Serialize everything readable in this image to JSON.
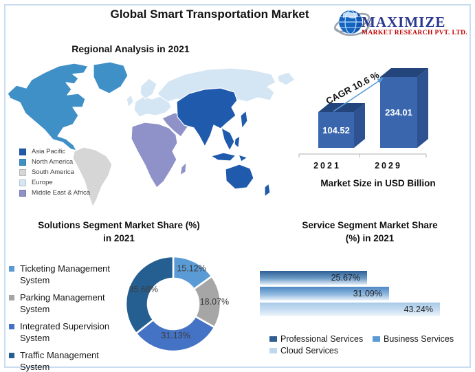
{
  "page": {
    "title": "Global Smart Transportation Market",
    "border_color": "#C9DCF0"
  },
  "logo": {
    "brand": "MAXIMIZE",
    "subtitle": "MARKET RESEARCH PVT. LTD.",
    "brand_color": "#2B3990",
    "subtitle_color": "#C00000"
  },
  "regional": {
    "heading": "Regional Analysis in 2021",
    "legend": [
      {
        "label": "Asia Pacific",
        "color": "#1F5AAD"
      },
      {
        "label": "North America",
        "color": "#4090C8"
      },
      {
        "label": "South America",
        "color": "#D6D6D6"
      },
      {
        "label": "Europe",
        "color": "#D4E5F3"
      },
      {
        "label": "Middle East & Africa",
        "color": "#8F91C9"
      }
    ]
  },
  "chart_data": [
    {
      "id": "market_size",
      "type": "bar",
      "style": "3d",
      "title": "Market Size in USD Billion",
      "categories": [
        "2021",
        "2029"
      ],
      "values": [
        104.52,
        234.01
      ],
      "value_labels": [
        "104.52",
        "234.01"
      ],
      "annotation": "CAGR 10.6 %",
      "bar_front_color": "#3A66AE",
      "bar_top_color": "#24457C",
      "bar_side_color": "#2D5191",
      "arrow_color": "#5B9BD5"
    },
    {
      "id": "solutions_segment",
      "type": "pie",
      "subtype": "donut",
      "title": "Solutions Segment Market Share (%) in 2021",
      "title_lines": [
        "Solutions Segment Market Share (%)",
        "in 2021"
      ],
      "labels": [
        "Ticketing Management System",
        "Parking Management System",
        "Integrated Supervision System",
        "Traffic Management System"
      ],
      "label_lines": [
        [
          "Ticketing Management",
          "System"
        ],
        [
          "Parking Management",
          "System"
        ],
        [
          "Integrated Supervision",
          "System"
        ],
        [
          "Traffic Management System"
        ]
      ],
      "values": [
        15.12,
        18.07,
        31.13,
        35.68
      ],
      "value_labels": [
        "15.12%",
        "18.07%",
        "31.13%",
        "35.68%"
      ],
      "colors": [
        "#5B9BD5",
        "#A6A6A6",
        "#4472C4",
        "#255E91"
      ],
      "legend_position": "left"
    },
    {
      "id": "service_segment",
      "type": "bar",
      "orientation": "horizontal",
      "title": "Service Segment Market Share (%) in 2021",
      "title_lines": [
        "Service Segment Market Share",
        "(%) in 2021"
      ],
      "categories": [
        "Professional Services",
        "Business Services",
        "Cloud Services"
      ],
      "values": [
        25.67,
        31.09,
        43.24
      ],
      "value_labels": [
        "25.67%",
        "31.09%",
        "43.24%"
      ],
      "colors": [
        "#2F5E93",
        "#5B9BD5",
        "#BDD7EE"
      ],
      "gradients": [
        [
          "#2E5E94",
          "#6F9CC8",
          "#E2ECF6"
        ],
        [
          "#4E88C4",
          "#8FB8DF",
          "#E8F1FA"
        ],
        [
          "#A7C9E8",
          "#C9DEF2",
          "#F0F6FC"
        ]
      ],
      "xlim": [
        0,
        46
      ],
      "legend_position": "bottom"
    }
  ]
}
